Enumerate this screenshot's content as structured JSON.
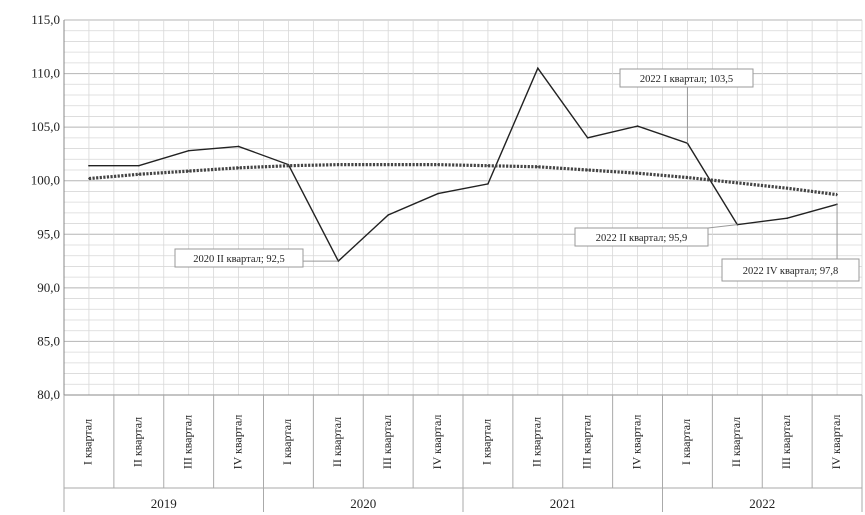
{
  "chart_data": {
    "type": "line",
    "title": "",
    "xlabel": "",
    "ylabel": "",
    "ylim": [
      80,
      115
    ],
    "y_ticks": [
      "80,0",
      "85,0",
      "90,0",
      "95,0",
      "100,0",
      "105,0",
      "110,0",
      "115,0"
    ],
    "y_tick_values": [
      80,
      85,
      90,
      95,
      100,
      105,
      110,
      115
    ],
    "grid": true,
    "categories": [
      "I квартал",
      "II квартал",
      "III квартал",
      "IV квартал",
      "I квартал",
      "II квартал",
      "III квартал",
      "IV квартал",
      "I квартал",
      "II квартал",
      "III квартал",
      "IV квартал",
      "I квартал",
      "II квартал",
      "III квартал",
      "IV квартал"
    ],
    "years": [
      "2019",
      "2020",
      "2021",
      "2022"
    ],
    "series": [
      {
        "values": [
          101.4,
          101.4,
          102.8,
          103.2,
          101.5,
          92.5,
          96.8,
          98.8,
          99.7,
          110.5,
          104.0,
          105.1,
          103.5,
          95.9,
          96.5,
          97.8
        ],
        "color": "#222222",
        "style": "solid"
      },
      {
        "values": [
          100.2,
          100.6,
          100.9,
          101.2,
          101.4,
          101.5,
          101.5,
          101.5,
          101.4,
          101.3,
          101.0,
          100.7,
          100.3,
          99.8,
          99.3,
          98.7
        ],
        "color": "#444444",
        "style": "dotted-trend"
      }
    ],
    "annotations": [
      {
        "text": "2020 II квартал; 92,5",
        "point_index": 5
      },
      {
        "text": "2022 I квартал; 103,5",
        "point_index": 12
      },
      {
        "text": "2022 II квартал; 95,9",
        "point_index": 13
      },
      {
        "text": "2022 IV квартал; 97,8",
        "point_index": 15
      }
    ]
  }
}
